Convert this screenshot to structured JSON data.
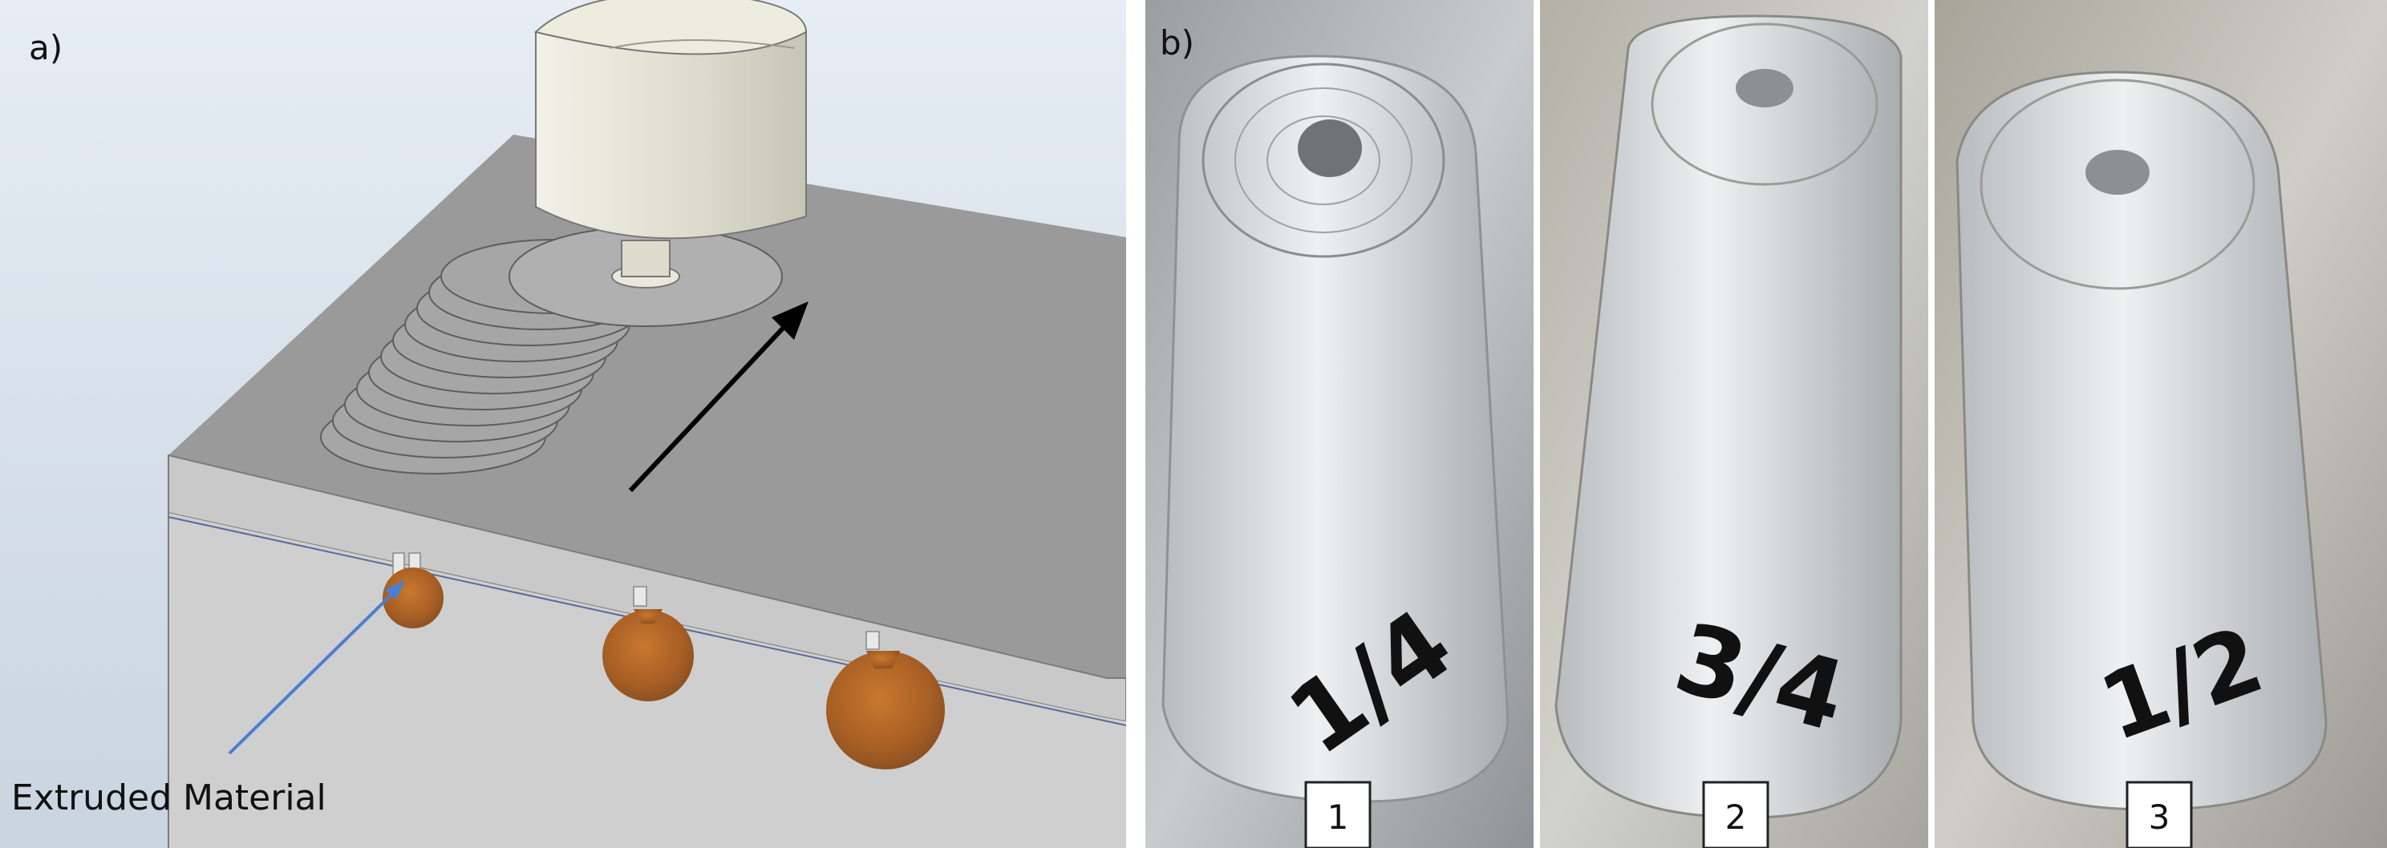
{
  "panel_a": {
    "label": "a)",
    "caption": "Extruded Material"
  },
  "panel_b": {
    "label": "b)",
    "photos": [
      {
        "number": "1",
        "marking": "1/4"
      },
      {
        "number": "2",
        "marking": "3/4"
      },
      {
        "number": "3",
        "marking": "1/2"
      }
    ]
  },
  "colors": {
    "background_a": "#dde6ef",
    "plate_top": "#9a9a9a",
    "plate_front": "#c9c9c9",
    "plate_side": "#bdbdbd",
    "tool": "#e3e3d6",
    "extruded": "#b86a2a",
    "arrow": "#000000",
    "leader": "#4a7fd0",
    "photo_metal": "#b8bec2"
  }
}
